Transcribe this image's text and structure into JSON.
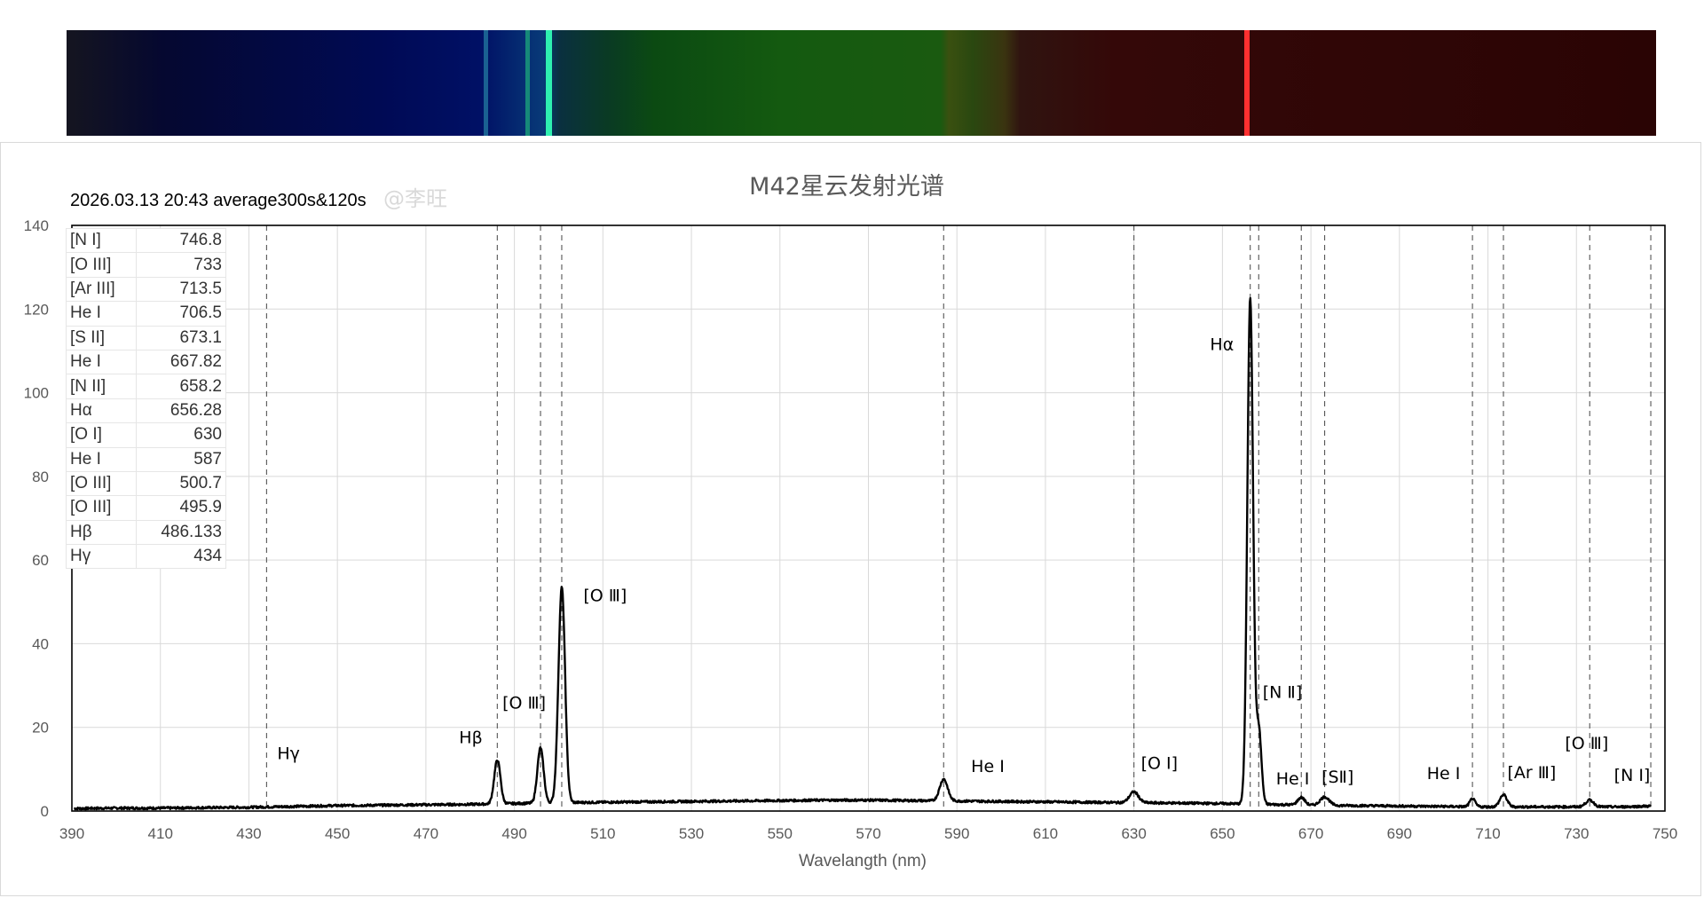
{
  "chart_data": {
    "type": "line",
    "title": "M42星云发射光谱",
    "subtitle": "2026.03.13 20:43 average300s&120s",
    "watermark": "@李旺",
    "xlabel": "Wavelangth (nm)",
    "ylabel": "",
    "xlim": [
      390,
      750
    ],
    "ylim": [
      0,
      140
    ],
    "x_ticks": [
      "390",
      "410",
      "430",
      "450",
      "470",
      "490",
      "510",
      "530",
      "550",
      "570",
      "590",
      "610",
      "630",
      "650",
      "670",
      "690",
      "710",
      "730",
      "750"
    ],
    "y_ticks": [
      "0",
      "20",
      "40",
      "60",
      "80",
      "100",
      "120",
      "140"
    ],
    "grid": true,
    "legend": "none",
    "line_color": "#000000",
    "baseline": [
      [
        390,
        0.6
      ],
      [
        400,
        0.7
      ],
      [
        410,
        0.7
      ],
      [
        420,
        0.8
      ],
      [
        430,
        0.9
      ],
      [
        440,
        1.1
      ],
      [
        450,
        1.3
      ],
      [
        460,
        1.4
      ],
      [
        470,
        1.5
      ],
      [
        480,
        1.6
      ],
      [
        490,
        1.8
      ],
      [
        500,
        2.0
      ],
      [
        510,
        2.1
      ],
      [
        520,
        2.2
      ],
      [
        530,
        2.3
      ],
      [
        540,
        2.4
      ],
      [
        550,
        2.5
      ],
      [
        560,
        2.6
      ],
      [
        570,
        2.6
      ],
      [
        580,
        2.5
      ],
      [
        590,
        2.4
      ],
      [
        600,
        2.3
      ],
      [
        610,
        2.2
      ],
      [
        620,
        2.1
      ],
      [
        630,
        2.0
      ],
      [
        640,
        1.9
      ],
      [
        650,
        1.8
      ],
      [
        660,
        1.6
      ],
      [
        670,
        1.4
      ],
      [
        680,
        1.3
      ],
      [
        690,
        1.2
      ],
      [
        700,
        1.1
      ],
      [
        710,
        1.0
      ],
      [
        720,
        1.0
      ],
      [
        730,
        1.0
      ],
      [
        740,
        1.0
      ],
      [
        747,
        1.2
      ]
    ],
    "peaks": [
      {
        "x": 486.133,
        "y": 10.5,
        "w": 0.7
      },
      {
        "x": 495.9,
        "y": 13.2,
        "w": 0.7
      },
      {
        "x": 500.7,
        "y": 51.5,
        "w": 0.75
      },
      {
        "x": 587,
        "y": 5.2,
        "w": 0.9
      },
      {
        "x": 630,
        "y": 2.6,
        "w": 1.0
      },
      {
        "x": 656.28,
        "y": 121,
        "w": 0.65
      },
      {
        "x": 658.2,
        "y": 18,
        "w": 0.6
      },
      {
        "x": 667.82,
        "y": 1.8,
        "w": 0.8
      },
      {
        "x": 673.1,
        "y": 2.0,
        "w": 1.0
      },
      {
        "x": 706.5,
        "y": 1.9,
        "w": 0.6
      },
      {
        "x": 713.5,
        "y": 2.9,
        "w": 0.8
      },
      {
        "x": 733,
        "y": 1.6,
        "w": 0.9
      }
    ],
    "reference_lines": [
      {
        "name": "[N I]",
        "nm": "746.8",
        "x": 746.8
      },
      {
        "name": "[O III]",
        "nm": "733",
        "x": 733
      },
      {
        "name": "[Ar III]",
        "nm": "713.5",
        "x": 713.5
      },
      {
        "name": "He I",
        "nm": "706.5",
        "x": 706.5
      },
      {
        "name": "[S II]",
        "nm": "673.1",
        "x": 673.1
      },
      {
        "name": "He I",
        "nm": "667.82",
        "x": 667.82
      },
      {
        "name": "[N II]",
        "nm": "658.2",
        "x": 658.2
      },
      {
        "name": "Hα",
        "nm": "656.28",
        "x": 656.28
      },
      {
        "name": "[O I]",
        "nm": "630",
        "x": 630
      },
      {
        "name": "He I",
        "nm": "587",
        "x": 587
      },
      {
        "name": "[O III]",
        "nm": "500.7",
        "x": 500.7
      },
      {
        "name": "[O III]",
        "nm": "495.9",
        "x": 495.9
      },
      {
        "name": "Hβ",
        "nm": "486.133",
        "x": 486.133
      },
      {
        "name": "Hγ",
        "nm": "434",
        "x": 434
      }
    ],
    "annotations": [
      {
        "text": "Hγ",
        "x": 436.4,
        "y": 12.4
      },
      {
        "text": "Hβ",
        "x": 477.5,
        "y": 16.2
      },
      {
        "text": "[O Ⅲ]",
        "x": 487.3,
        "y": 24.5
      },
      {
        "text": "[O Ⅲ]",
        "x": 505.6,
        "y": 50.2
      },
      {
        "text": "He Ⅰ",
        "x": 593.2,
        "y": 9.3
      },
      {
        "text": "[O Ⅰ]",
        "x": 631.6,
        "y": 10.1
      },
      {
        "text": "Hα",
        "x": 647.2,
        "y": 110.2
      },
      {
        "text": "[N Ⅱ]",
        "x": 659.1,
        "y": 27
      },
      {
        "text": "He Ⅰ",
        "x": 662.1,
        "y": 6.4
      },
      {
        "text": "[SⅡ]",
        "x": 672.4,
        "y": 6.8
      },
      {
        "text": "He Ⅰ",
        "x": 696.2,
        "y": 7.6
      },
      {
        "text": "[Ar Ⅲ]",
        "x": 714.4,
        "y": 7.8
      },
      {
        "text": "[O Ⅲ]",
        "x": 727.4,
        "y": 14.9
      },
      {
        "text": "[N Ⅰ]",
        "x": 738.5,
        "y": 7.2
      }
    ]
  }
}
